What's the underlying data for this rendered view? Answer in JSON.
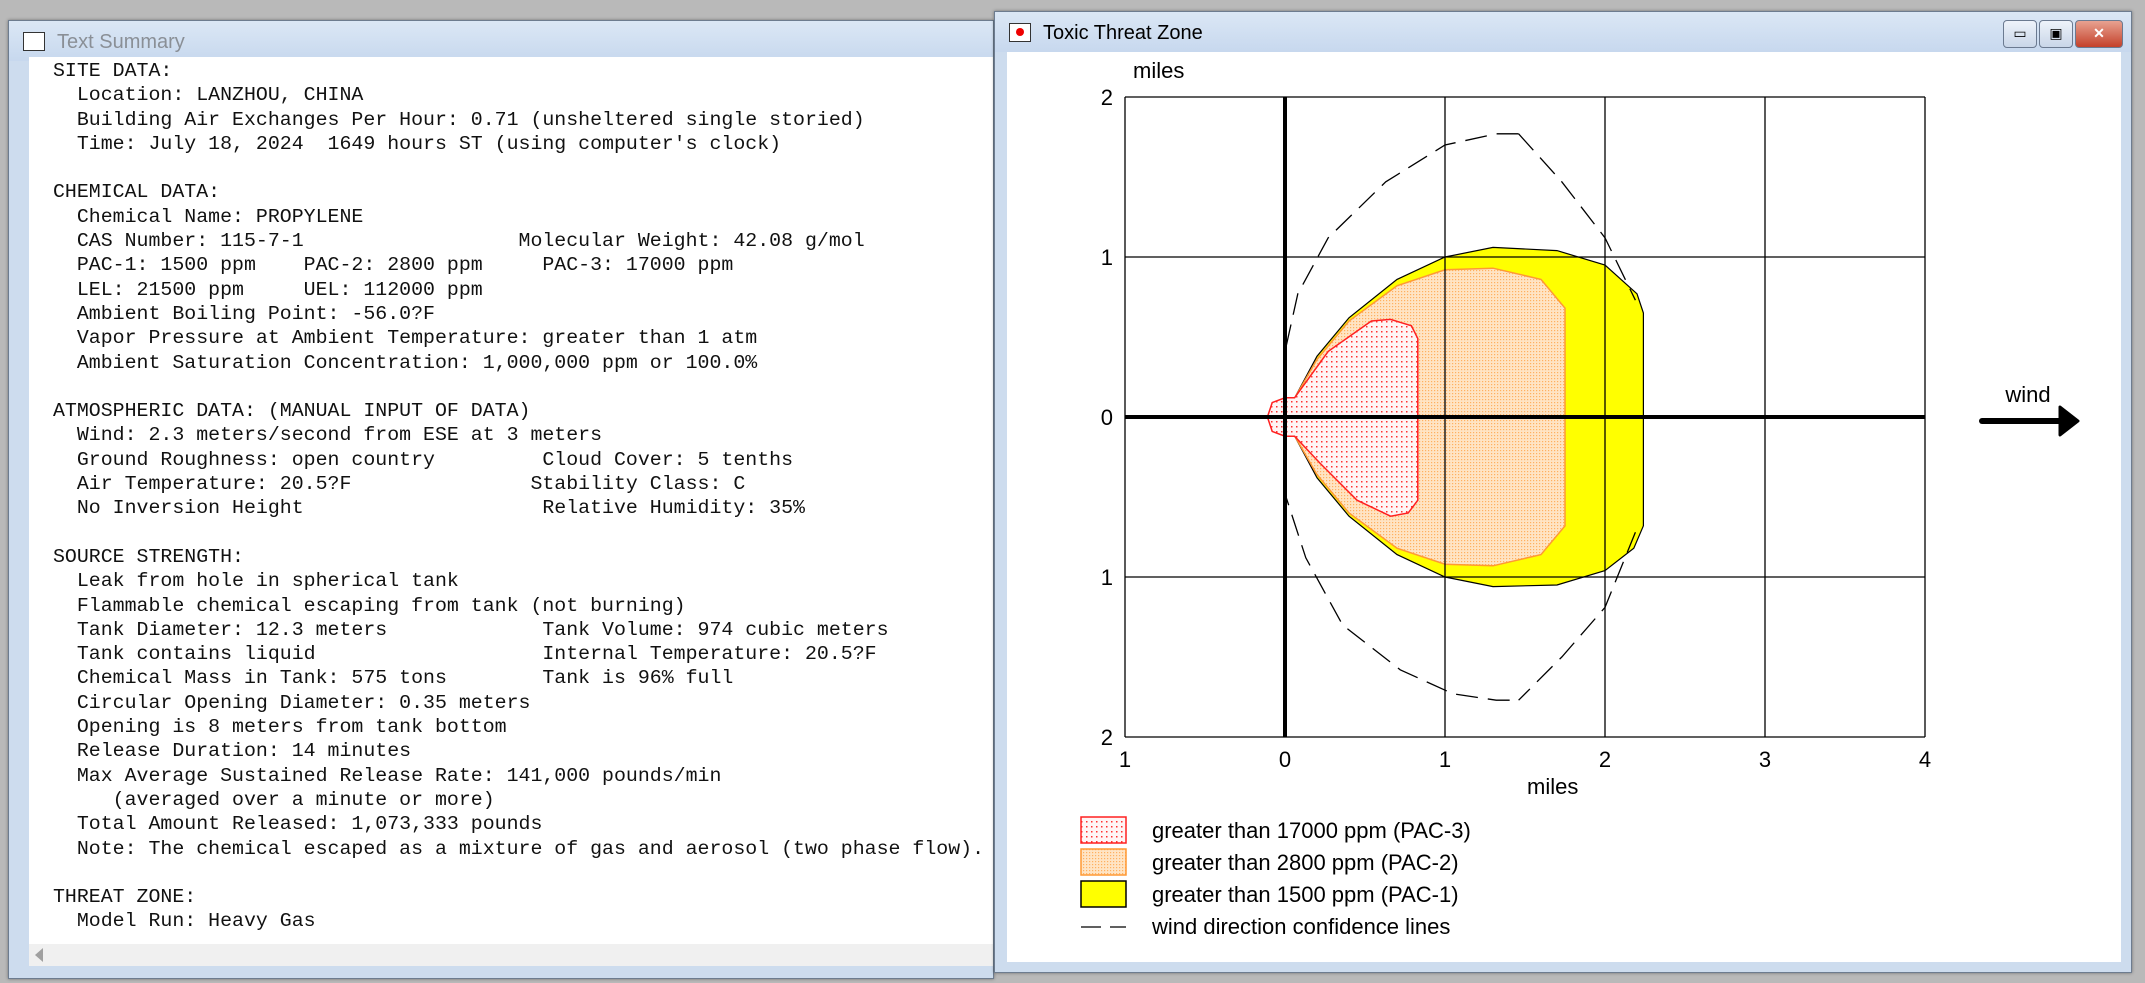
{
  "text_summary": {
    "title": "Text Summary",
    "lines": [
      "SITE DATA:",
      "  Location: LANZHOU, CHINA",
      "  Building Air Exchanges Per Hour: 0.71 (unsheltered single storied)",
      "  Time: July 18, 2024  1649 hours ST (using computer's clock)",
      "",
      "CHEMICAL DATA:",
      "  Chemical Name: PROPYLENE",
      "  CAS Number: 115-7-1                  Molecular Weight: 42.08 g/mol",
      "  PAC-1: 1500 ppm    PAC-2: 2800 ppm     PAC-3: 17000 ppm",
      "  LEL: 21500 ppm     UEL: 112000 ppm",
      "  Ambient Boiling Point: -56.0?F",
      "  Vapor Pressure at Ambient Temperature: greater than 1 atm",
      "  Ambient Saturation Concentration: 1,000,000 ppm or 100.0%",
      "",
      "ATMOSPHERIC DATA: (MANUAL INPUT OF DATA)",
      "  Wind: 2.3 meters/second from ESE at 3 meters",
      "  Ground Roughness: open country         Cloud Cover: 5 tenths",
      "  Air Temperature: 20.5?F               Stability Class: C",
      "  No Inversion Height                    Relative Humidity: 35%",
      "",
      "SOURCE STRENGTH:",
      "  Leak from hole in spherical tank",
      "  Flammable chemical escaping from tank (not burning)",
      "  Tank Diameter: 12.3 meters             Tank Volume: 974 cubic meters",
      "  Tank contains liquid                   Internal Temperature: 20.5?F",
      "  Chemical Mass in Tank: 575 tons        Tank is 96% full",
      "  Circular Opening Diameter: 0.35 meters",
      "  Opening is 8 meters from tank bottom",
      "  Release Duration: 14 minutes",
      "  Max Average Sustained Release Rate: 141,000 pounds/min",
      "     (averaged over a minute or more)",
      "  Total Amount Released: 1,073,333 pounds",
      "  Note: The chemical escaped as a mixture of gas and aerosol (two phase flow).",
      "",
      "THREAT ZONE:",
      "  Model Run: Heavy Gas"
    ]
  },
  "threat_zone": {
    "title": "Toxic Threat Zone",
    "buttons": {
      "minimize": "▭",
      "maximize": "▣",
      "close": "✕"
    },
    "wind_label": "wind"
  },
  "chart_data": {
    "type": "area",
    "xlabel": "miles",
    "ylabel": "miles",
    "xlim": [
      -1,
      4
    ],
    "ylim": [
      -2,
      2
    ],
    "x_ticks": [
      "1",
      "0",
      "1",
      "2",
      "3",
      "4"
    ],
    "y_ticks": [
      "2",
      "1",
      "0",
      "1",
      "2"
    ],
    "grid": true,
    "legend_placement": "bottom",
    "series": [
      {
        "name": "greater than 1500 ppm (PAC-1)",
        "color": "#ffff00",
        "polygon": [
          [
            0.05,
            0.1
          ],
          [
            0.2,
            0.38
          ],
          [
            0.4,
            0.62
          ],
          [
            0.7,
            0.86
          ],
          [
            1.0,
            1.0
          ],
          [
            1.3,
            1.06
          ],
          [
            1.7,
            1.04
          ],
          [
            2.0,
            0.95
          ],
          [
            2.2,
            0.77
          ],
          [
            2.24,
            0.65
          ],
          [
            2.24,
            -0.68
          ],
          [
            2.18,
            -0.82
          ],
          [
            2.0,
            -0.96
          ],
          [
            1.7,
            -1.05
          ],
          [
            1.3,
            -1.06
          ],
          [
            1.0,
            -1.0
          ],
          [
            0.7,
            -0.86
          ],
          [
            0.4,
            -0.62
          ],
          [
            0.2,
            -0.38
          ],
          [
            0.05,
            -0.1
          ]
        ]
      },
      {
        "name": "greater than 2800 ppm (PAC-2)",
        "color": "#ff9933",
        "polygon": [
          [
            0.05,
            0.1
          ],
          [
            0.2,
            0.36
          ],
          [
            0.4,
            0.6
          ],
          [
            0.7,
            0.82
          ],
          [
            1.0,
            0.92
          ],
          [
            1.3,
            0.93
          ],
          [
            1.6,
            0.86
          ],
          [
            1.75,
            0.68
          ],
          [
            1.75,
            -0.68
          ],
          [
            1.6,
            -0.86
          ],
          [
            1.3,
            -0.93
          ],
          [
            1.0,
            -0.92
          ],
          [
            0.7,
            -0.82
          ],
          [
            0.4,
            -0.6
          ],
          [
            0.2,
            -0.36
          ],
          [
            0.05,
            -0.1
          ]
        ]
      },
      {
        "name": "greater than 17000 ppm (PAC-3)",
        "color": "#ff0000",
        "polygon": [
          [
            0,
            0.12
          ],
          [
            0.06,
            0.12
          ],
          [
            0.27,
            0.41
          ],
          [
            0.54,
            0.6
          ],
          [
            0.66,
            0.61
          ],
          [
            0.79,
            0.57
          ],
          [
            0.83,
            0.49
          ],
          [
            0.83,
            -0.52
          ],
          [
            0.77,
            -0.6
          ],
          [
            0.66,
            -0.62
          ],
          [
            0.45,
            -0.52
          ],
          [
            0.22,
            -0.29
          ],
          [
            0.06,
            -0.12
          ],
          [
            0,
            -0.12
          ],
          [
            -0.08,
            -0.09
          ],
          [
            -0.11,
            0
          ],
          [
            -0.08,
            0.09
          ]
        ]
      }
    ],
    "confidence_lines": {
      "name": "wind direction confidence lines",
      "lines": [
        [
          [
            1.46,
            1.77
          ],
          [
            1.32,
            1.77
          ],
          [
            1.0,
            1.7
          ],
          [
            0.63,
            1.47
          ],
          [
            0.27,
            1.12
          ],
          [
            0.08,
            0.77
          ],
          [
            0,
            0.41
          ],
          [
            0,
            -0.48
          ],
          [
            0.13,
            -0.88
          ],
          [
            0.36,
            -1.3
          ],
          [
            0.72,
            -1.58
          ],
          [
            1.05,
            -1.73
          ],
          [
            1.32,
            -1.77
          ],
          [
            1.46,
            -1.77
          ]
        ],
        [
          [
            1.46,
            1.77
          ],
          [
            1.73,
            1.47
          ],
          [
            2.0,
            1.12
          ],
          [
            2.19,
            0.73
          ]
        ],
        [
          [
            2.19,
            -0.72
          ],
          [
            2.0,
            -1.19
          ],
          [
            1.73,
            -1.5
          ],
          [
            1.46,
            -1.77
          ]
        ]
      ]
    },
    "legend": [
      "greater than 17000 ppm (PAC-3)",
      "greater than 2800 ppm (PAC-2)",
      "greater than 1500 ppm (PAC-1)",
      "wind direction confidence lines"
    ]
  }
}
